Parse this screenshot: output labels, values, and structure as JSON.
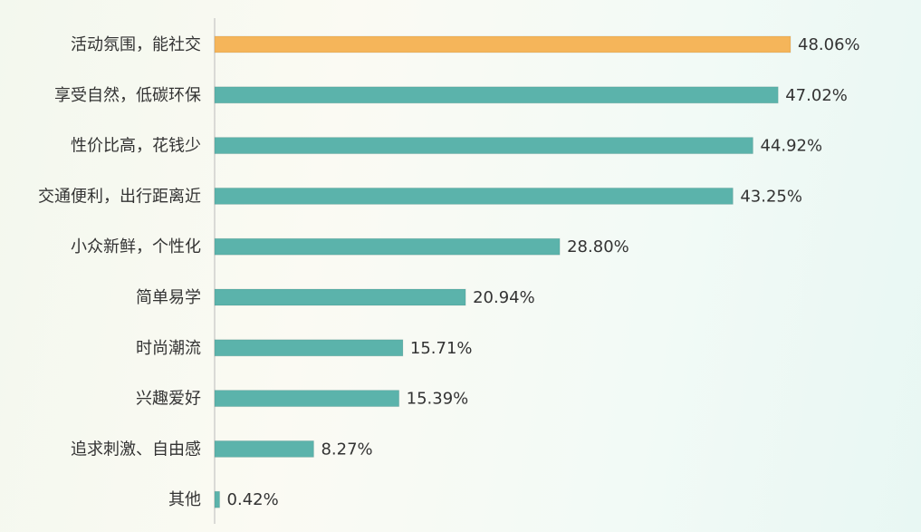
{
  "chart_data": {
    "type": "bar",
    "orientation": "horizontal",
    "categories": [
      "活动氛围，能社交",
      "享受自然，低碳环保",
      "性价比高，花钱少",
      "交通便利，出行距离近",
      "小众新鲜，个性化",
      "简单易学",
      "时尚潮流",
      "兴趣爱好",
      "追求刺激、自由感",
      "其他"
    ],
    "values": [
      48.06,
      47.02,
      44.92,
      43.25,
      28.8,
      20.94,
      15.71,
      15.39,
      8.27,
      0.42
    ],
    "value_labels": [
      "48.06%",
      "47.02%",
      "44.92%",
      "43.25%",
      "28.80%",
      "20.94%",
      "15.71%",
      "15.39%",
      "8.27%",
      "0.42%"
    ],
    "colors": [
      "#f5b55a",
      "#5bb3ab",
      "#5bb3ab",
      "#5bb3ab",
      "#5bb3ab",
      "#5bb3ab",
      "#5bb3ab",
      "#5bb3ab",
      "#5bb3ab",
      "#5bb3ab"
    ]
  }
}
